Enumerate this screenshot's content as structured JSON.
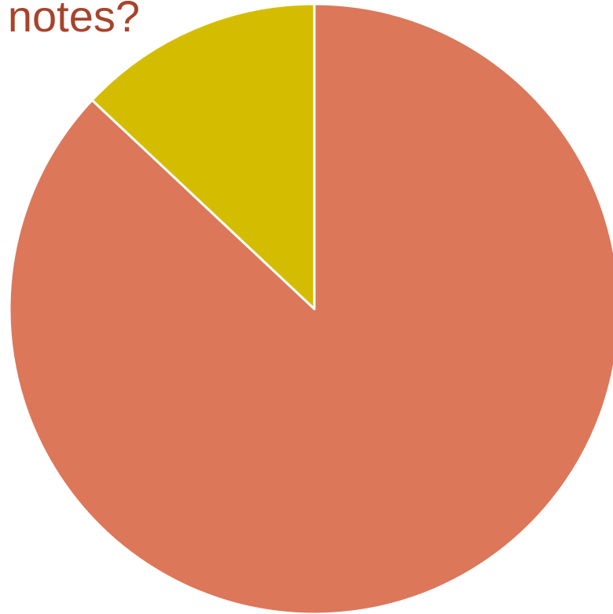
{
  "chart_data": {
    "type": "pie",
    "title": "notes?",
    "start_angle_deg": 90,
    "direction": "clockwise",
    "slices": [
      {
        "value": 87,
        "color": "#DC775A"
      },
      {
        "value": 13,
        "color": "#D4BD00"
      }
    ],
    "colors": {
      "title": "#A8432B",
      "slice_border": "#FFFFFF"
    }
  }
}
